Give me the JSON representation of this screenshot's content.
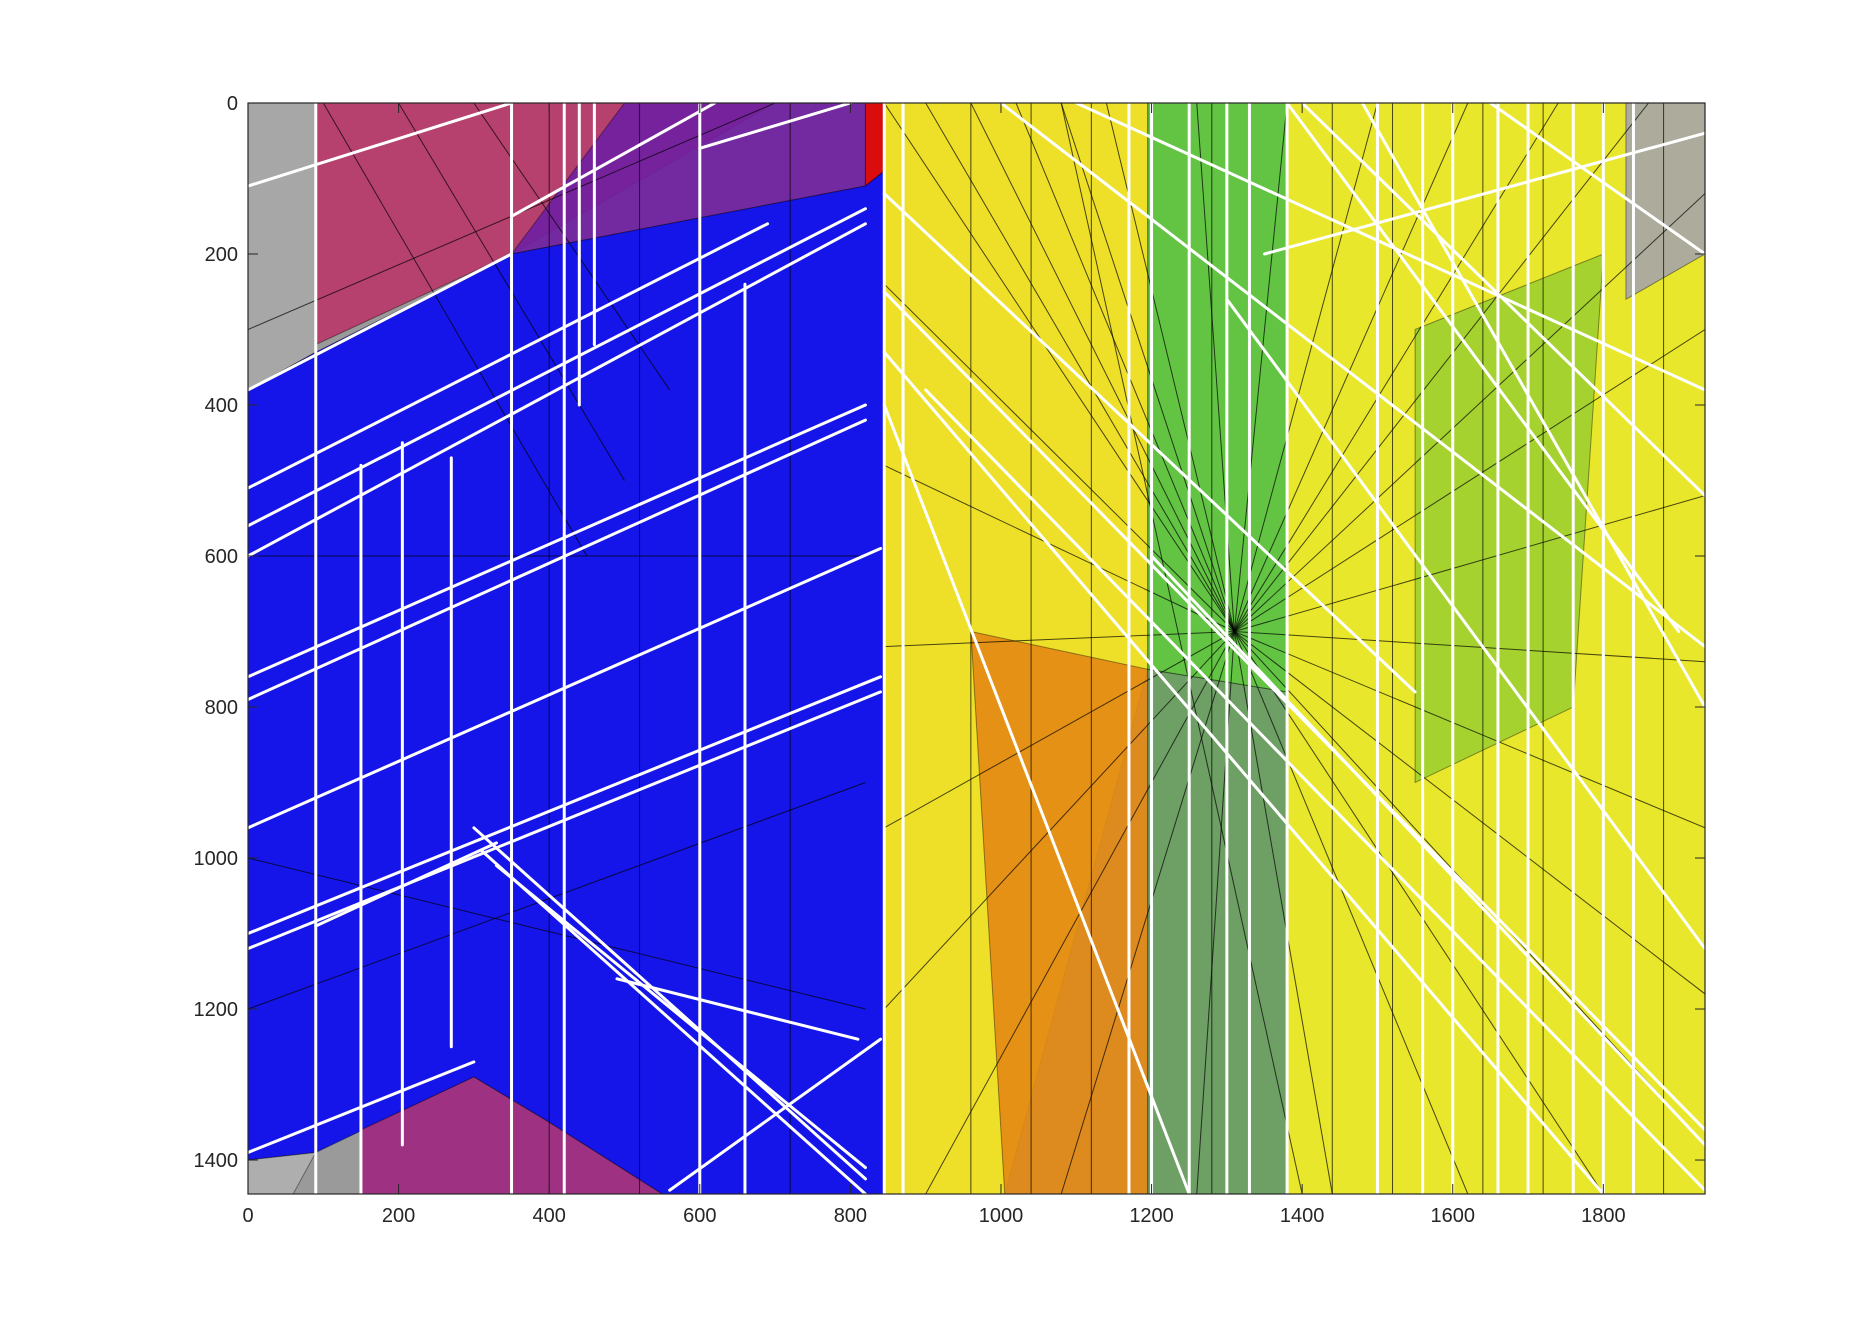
{
  "chart_data": {
    "type": "image",
    "title": "",
    "xlabel": "",
    "ylabel": "",
    "xlim": [
      0,
      1935
    ],
    "ylim": [
      1445,
      0
    ],
    "y_reversed": true,
    "xticks": [
      0,
      200,
      400,
      600,
      800,
      1000,
      1200,
      1400,
      1600,
      1800
    ],
    "yticks": [
      0,
      200,
      400,
      600,
      800,
      1000,
      1200,
      1400
    ],
    "xtick_labels": [
      "0",
      "200",
      "400",
      "600",
      "800",
      "1000",
      "1200",
      "1400",
      "1600",
      "1800"
    ],
    "ytick_labels": [
      "0",
      "200",
      "400",
      "600",
      "800",
      "1000",
      "1200",
      "1400"
    ],
    "grid": false,
    "colors": {
      "blue_region": "#0a0af0",
      "yellow_region": "#f5f01e",
      "orange_region": "#e07a10",
      "green_region": "#5ec83c",
      "magenta_region": "#b02060",
      "gray_region": "#a0a0a0",
      "white_segments": "#ffffff",
      "black_segments": "#000000",
      "axis_color": "#262626"
    },
    "regions": [
      {
        "name": "top-left-gray",
        "color": "#a8a8a8",
        "polygon": [
          [
            0,
            0
          ],
          [
            90,
            0
          ],
          [
            90,
            330
          ],
          [
            0,
            380
          ]
        ]
      },
      {
        "name": "top-magenta",
        "color": "#b83a6a",
        "polygon": [
          [
            90,
            0
          ],
          [
            700,
            0
          ],
          [
            350,
            200
          ],
          [
            90,
            320
          ]
        ]
      },
      {
        "name": "top-purple",
        "color": "#7020a0",
        "polygon": [
          [
            500,
            0
          ],
          [
            820,
            0
          ],
          [
            820,
            110
          ],
          [
            350,
            200
          ]
        ]
      },
      {
        "name": "red-sliver",
        "color": "#e00000",
        "polygon": [
          [
            820,
            0
          ],
          [
            845,
            0
          ],
          [
            845,
            90
          ],
          [
            820,
            110
          ]
        ]
      },
      {
        "name": "blue-main",
        "color": "#0a0af0",
        "polygon": [
          [
            0,
            380
          ],
          [
            90,
            330
          ],
          [
            350,
            200
          ],
          [
            820,
            110
          ],
          [
            845,
            90
          ],
          [
            845,
            1445
          ],
          [
            550,
            1445
          ],
          [
            400,
            1350
          ],
          [
            300,
            1290
          ],
          [
            90,
            1390
          ],
          [
            0,
            1400
          ]
        ]
      },
      {
        "name": "bottom-left-magenta",
        "color": "#a02880",
        "polygon": [
          [
            150,
            1360
          ],
          [
            300,
            1290
          ],
          [
            400,
            1350
          ],
          [
            550,
            1445
          ],
          [
            150,
            1445
          ]
        ]
      },
      {
        "name": "bottom-left-gray",
        "color": "#b0b0b0",
        "polygon": [
          [
            0,
            1400
          ],
          [
            90,
            1390
          ],
          [
            60,
            1445
          ],
          [
            0,
            1445
          ]
        ]
      },
      {
        "name": "yellow-left",
        "color": "#f5e61e",
        "polygon": [
          [
            845,
            0
          ],
          [
            1195,
            0
          ],
          [
            1195,
            750
          ],
          [
            1005,
            1445
          ],
          [
            845,
            1445
          ]
        ]
      },
      {
        "name": "orange-column",
        "color": "#e38a14",
        "polygon": [
          [
            960,
            700
          ],
          [
            1195,
            750
          ],
          [
            1195,
            1445
          ],
          [
            1005,
            1445
          ]
        ]
      },
      {
        "name": "green-column",
        "color": "#6aa060",
        "polygon": [
          [
            1195,
            750
          ],
          [
            1380,
            780
          ],
          [
            1380,
            1445
          ],
          [
            1195,
            1445
          ]
        ]
      },
      {
        "name": "green-top",
        "color": "#5ec83c",
        "polygon": [
          [
            1195,
            0
          ],
          [
            1380,
            0
          ],
          [
            1380,
            780
          ],
          [
            1195,
            750
          ]
        ]
      },
      {
        "name": "yellow-right",
        "color": "#f0ee22",
        "polygon": [
          [
            1380,
            0
          ],
          [
            1935,
            0
          ],
          [
            1935,
            1445
          ],
          [
            1380,
            1445
          ]
        ]
      },
      {
        "name": "right-green-patch",
        "color": "#a0d030",
        "polygon": [
          [
            1550,
            300
          ],
          [
            1800,
            200
          ],
          [
            1760,
            800
          ],
          [
            1550,
            900
          ]
        ]
      },
      {
        "name": "top-right-gray",
        "color": "#a6a6a6",
        "polygon": [
          [
            1830,
            0
          ],
          [
            1935,
            0
          ],
          [
            1935,
            200
          ],
          [
            1830,
            260
          ]
        ]
      }
    ],
    "white_segments": [
      [
        0,
        110,
        350,
        0
      ],
      [
        0,
        380,
        350,
        200
      ],
      [
        0,
        510,
        690,
        160
      ],
      [
        0,
        560,
        820,
        140
      ],
      [
        0,
        600,
        820,
        160
      ],
      [
        0,
        760,
        820,
        400
      ],
      [
        0,
        790,
        820,
        420
      ],
      [
        0,
        960,
        840,
        590
      ],
      [
        0,
        1100,
        840,
        760
      ],
      [
        0,
        1120,
        840,
        780
      ],
      [
        0,
        1390,
        300,
        1270
      ],
      [
        90,
        0,
        90,
        1445
      ],
      [
        150,
        480,
        150,
        1445
      ],
      [
        205,
        450,
        205,
        1380
      ],
      [
        270,
        470,
        270,
        1250
      ],
      [
        350,
        0,
        350,
        1445
      ],
      [
        420,
        0,
        420,
        1445
      ],
      [
        440,
        0,
        440,
        400
      ],
      [
        460,
        0,
        460,
        320
      ],
      [
        600,
        0,
        600,
        1445
      ],
      [
        660,
        240,
        660,
        1445
      ],
      [
        845,
        0,
        845,
        1445
      ],
      [
        870,
        0,
        870,
        1445
      ],
      [
        300,
        960,
        820,
        1425
      ],
      [
        310,
        990,
        820,
        1445
      ],
      [
        330,
        1010,
        820,
        1410
      ],
      [
        490,
        1160,
        810,
        1240
      ],
      [
        560,
        1440,
        840,
        1240
      ],
      [
        90,
        1090,
        330,
        980
      ],
      [
        350,
        150,
        620,
        0
      ],
      [
        600,
        60,
        800,
        0
      ],
      [
        1170,
        0,
        1170,
        1445
      ],
      [
        1200,
        0,
        1200,
        1445
      ],
      [
        1250,
        0,
        1250,
        1445
      ],
      [
        1300,
        0,
        1300,
        1445
      ],
      [
        1330,
        0,
        1330,
        1445
      ],
      [
        1380,
        0,
        1380,
        1445
      ],
      [
        1500,
        0,
        1500,
        1445
      ],
      [
        1560,
        0,
        1560,
        1445
      ],
      [
        1600,
        0,
        1600,
        1445
      ],
      [
        1660,
        0,
        1660,
        1445
      ],
      [
        1700,
        0,
        1700,
        1445
      ],
      [
        1760,
        0,
        1760,
        1445
      ],
      [
        1800,
        0,
        1800,
        1445
      ],
      [
        1840,
        0,
        1840,
        1445
      ],
      [
        845,
        250,
        1935,
        1360
      ],
      [
        845,
        330,
        1800,
        1445
      ],
      [
        845,
        120,
        1550,
        780
      ],
      [
        1400,
        0,
        1935,
        520
      ],
      [
        1480,
        0,
        1935,
        800
      ],
      [
        1100,
        0,
        1935,
        380
      ],
      [
        1350,
        200,
        1935,
        40
      ],
      [
        845,
        400,
        1250,
        1445
      ],
      [
        900,
        380,
        1935,
        1440
      ],
      [
        1000,
        0,
        1935,
        720
      ],
      [
        1200,
        600,
        1935,
        1380
      ],
      [
        1300,
        260,
        1935,
        1120
      ],
      [
        1380,
        0,
        1900,
        700
      ],
      [
        1650,
        0,
        1935,
        200
      ]
    ],
    "black_segments": [
      [
        1310,
        700,
        845,
        0
      ],
      [
        1310,
        700,
        900,
        0
      ],
      [
        1310,
        700,
        960,
        0
      ],
      [
        1310,
        700,
        1020,
        0
      ],
      [
        1310,
        700,
        1080,
        0
      ],
      [
        1310,
        700,
        1140,
        0
      ],
      [
        1310,
        700,
        1260,
        0
      ],
      [
        1310,
        700,
        1380,
        0
      ],
      [
        1310,
        700,
        1500,
        0
      ],
      [
        1310,
        700,
        1620,
        0
      ],
      [
        1310,
        700,
        1740,
        0
      ],
      [
        1310,
        700,
        1860,
        0
      ],
      [
        1310,
        700,
        1935,
        120
      ],
      [
        1310,
        700,
        1935,
        300
      ],
      [
        1310,
        700,
        1935,
        520
      ],
      [
        1310,
        700,
        1935,
        740
      ],
      [
        1310,
        700,
        1935,
        960
      ],
      [
        1310,
        700,
        1935,
        1180
      ],
      [
        1310,
        700,
        1935,
        1380
      ],
      [
        1310,
        700,
        1800,
        1445
      ],
      [
        1310,
        700,
        1620,
        1445
      ],
      [
        1310,
        700,
        1440,
        1445
      ],
      [
        1310,
        700,
        1260,
        1445
      ],
      [
        1310,
        700,
        1080,
        1445
      ],
      [
        1310,
        700,
        900,
        1445
      ],
      [
        1310,
        700,
        845,
        1200
      ],
      [
        1310,
        700,
        845,
        960
      ],
      [
        1310,
        700,
        845,
        720
      ],
      [
        1310,
        700,
        845,
        480
      ],
      [
        1310,
        700,
        845,
        240
      ],
      [
        0,
        300,
        700,
        0
      ],
      [
        100,
        0,
        450,
        600
      ],
      [
        200,
        0,
        500,
        500
      ],
      [
        300,
        0,
        560,
        380
      ],
      [
        0,
        600,
        820,
        600
      ],
      [
        0,
        1000,
        820,
        1200
      ],
      [
        0,
        1200,
        820,
        900
      ],
      [
        400,
        0,
        400,
        1445
      ],
      [
        520,
        0,
        520,
        1445
      ],
      [
        720,
        0,
        720,
        1445
      ],
      [
        960,
        0,
        960,
        1445
      ],
      [
        1040,
        0,
        1040,
        1445
      ],
      [
        1120,
        0,
        1120,
        1445
      ],
      [
        1280,
        0,
        1280,
        1445
      ],
      [
        1440,
        0,
        1440,
        1445
      ],
      [
        1520,
        0,
        1520,
        1445
      ],
      [
        1640,
        0,
        1640,
        1445
      ],
      [
        1720,
        0,
        1720,
        1445
      ],
      [
        1880,
        0,
        1880,
        1445
      ],
      [
        1080,
        0,
        1400,
        1445
      ]
    ]
  }
}
